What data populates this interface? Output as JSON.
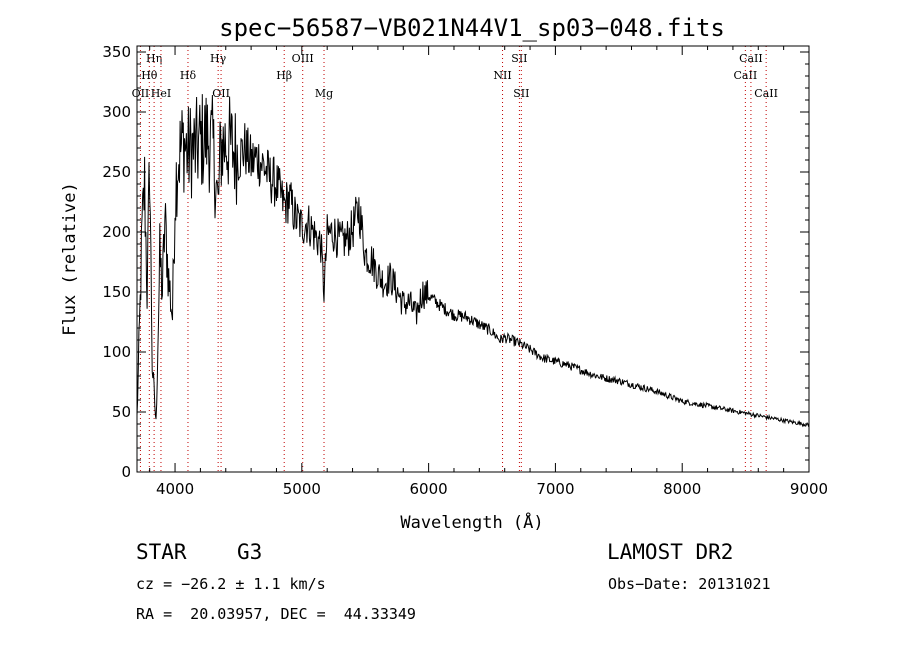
{
  "chart_data": {
    "type": "line",
    "title": "spec−56587−VB021N44V1_sp03−048.fits",
    "xlabel": "Wavelength (Å)",
    "ylabel": "Flux (relative)",
    "xlim": [
      3700,
      9000
    ],
    "ylim": [
      0,
      355
    ],
    "xticks": [
      4000,
      5000,
      6000,
      7000,
      8000,
      9000
    ],
    "yticks": [
      0,
      50,
      100,
      150,
      200,
      250,
      300,
      350
    ],
    "xtick_labels": [
      "4000",
      "5000",
      "6000",
      "7000",
      "8000",
      "9000"
    ],
    "ytick_labels": [
      "0",
      "50",
      "100",
      "150",
      "200",
      "250",
      "300",
      "350"
    ],
    "grid": false,
    "line_color": "#000000",
    "marker_color": "#c00000",
    "spectral_lines": [
      {
        "label": "Hη",
        "wave": 3835,
        "row": 0
      },
      {
        "label": "Hθ",
        "wave": 3797,
        "row": 1
      },
      {
        "label": "OII",
        "wave": 3727,
        "row": 2
      },
      {
        "label": "HeI",
        "wave": 3889,
        "row": 2
      },
      {
        "label": "Hδ",
        "wave": 4102,
        "row": 1
      },
      {
        "label": "Hγ",
        "wave": 4340,
        "row": 0
      },
      {
        "label": "OII",
        "wave": 4363,
        "row": 2
      },
      {
        "label": "Hβ",
        "wave": 4861,
        "row": 1
      },
      {
        "label": "OIII",
        "wave": 5007,
        "row": 0
      },
      {
        "label": "Mg",
        "wave": 5175,
        "row": 2
      },
      {
        "label": "NII",
        "wave": 6583,
        "row": 1
      },
      {
        "label": "SII",
        "wave": 6716,
        "row": 0
      },
      {
        "label": "SII",
        "wave": 6731,
        "row": 2
      },
      {
        "label": "CaII",
        "wave": 8498,
        "row": 1
      },
      {
        "label": "CaII",
        "wave": 8542,
        "row": 0
      },
      {
        "label": "CaII",
        "wave": 8662,
        "row": 2
      }
    ],
    "series": [
      {
        "x": [
          3700,
          3720,
          3740,
          3760,
          3780,
          3800,
          3820,
          3850,
          3880,
          3900,
          3920,
          3950,
          3980,
          4000,
          4020,
          4050,
          4070,
          4100,
          4130,
          4160,
          4200,
          4250,
          4300,
          4340,
          4360,
          4400,
          4450,
          4500,
          4550,
          4600,
          4650,
          4700,
          4750,
          4800,
          4861,
          4900,
          4950,
          5000,
          5050,
          5100,
          5150,
          5175,
          5200,
          5250,
          5300,
          5350,
          5400,
          5450,
          5500,
          5550,
          5600,
          5650,
          5700,
          5800,
          5850,
          5900,
          5950,
          6000,
          6100,
          6200,
          6300,
          6400,
          6500,
          6563,
          6600,
          6700,
          6800,
          6900,
          7000,
          7100,
          7200,
          7300,
          7400,
          7500,
          7600,
          7700,
          7800,
          7900,
          8000,
          8100,
          8200,
          8300,
          8400,
          8500,
          8600,
          8700,
          8800,
          8900,
          9000
        ],
        "y": [
          45,
          120,
          200,
          240,
          150,
          260,
          90,
          40,
          180,
          150,
          210,
          160,
          130,
          230,
          260,
          270,
          275,
          265,
          270,
          268,
          275,
          280,
          270,
          220,
          270,
          275,
          270,
          262,
          270,
          258,
          262,
          255,
          245,
          240,
          222,
          228,
          212,
          205,
          208,
          198,
          190,
          150,
          198,
          200,
          192,
          193,
          202,
          220,
          182,
          177,
          165,
          158,
          162,
          140,
          141,
          130,
          150,
          147,
          138,
          131,
          129,
          123,
          117,
          110,
          112,
          108,
          102,
          95,
          92,
          89,
          85,
          81,
          78,
          76,
          73,
          70,
          67,
          63,
          59,
          57,
          55,
          53,
          51,
          49,
          47,
          45,
          43,
          41,
          39
        ]
      }
    ]
  },
  "info": {
    "object_class": "STAR",
    "subclass": "G3",
    "survey": "LAMOST DR2",
    "cz": "cz = −26.2 ± 1.1 km/s",
    "obs_date": "Obs−Date: 20131021",
    "coords": "RA =  20.03957, DEC =  44.33349"
  }
}
